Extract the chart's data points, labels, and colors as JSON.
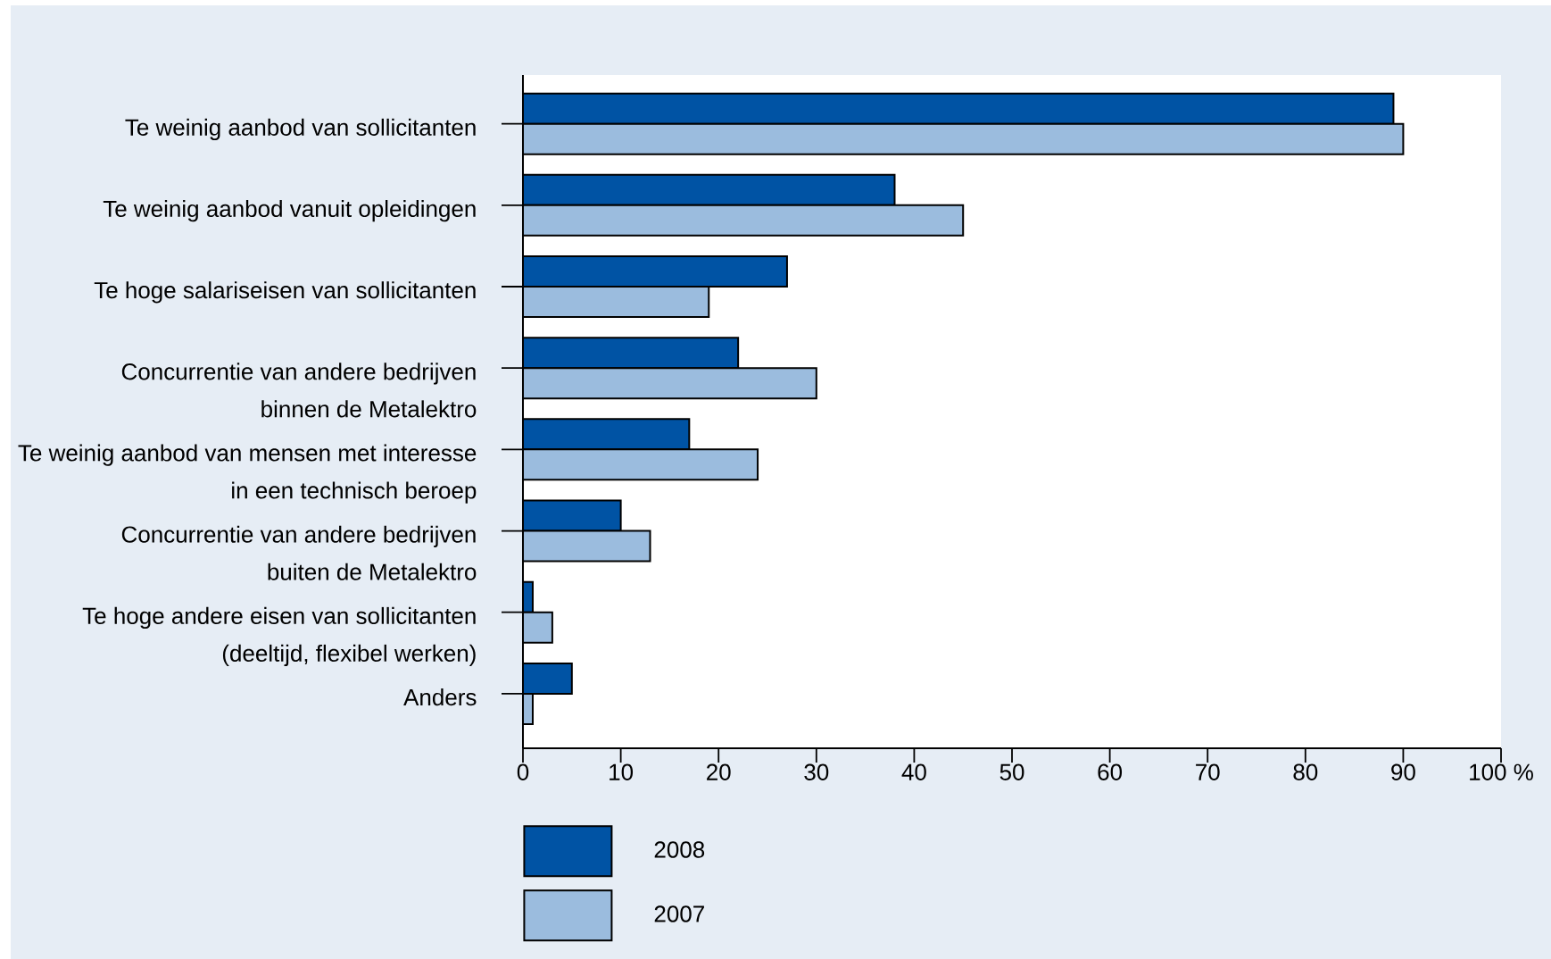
{
  "chart_data": {
    "type": "bar",
    "orientation": "horizontal",
    "categories": [
      "Te weinig aanbod van sollicitanten",
      "Te weinig aanbod vanuit opleidingen",
      "Te hoge salariseisen van sollicitanten",
      "Concurrentie van andere bedrijven binnen de Metalektro",
      "Te weinig aanbod van mensen met interesse in een technisch beroep",
      "Concurrentie van andere bedrijven buiten de Metalektro",
      "Te hoge andere eisen van sollicitanten (deeltijd, flexibel werken)",
      "Anders"
    ],
    "series": [
      {
        "name": "2008",
        "color": "#0053a4",
        "values": [
          89,
          38,
          27,
          22,
          17,
          10,
          1,
          5
        ]
      },
      {
        "name": "2007",
        "color": "#9bbcde",
        "values": [
          90,
          45,
          19,
          30,
          24,
          13,
          3,
          1
        ]
      }
    ],
    "xlim": [
      0,
      100
    ],
    "xticks": [
      0,
      10,
      20,
      30,
      40,
      50,
      60,
      70,
      80,
      90,
      {
        "value": 100,
        "label": "100 %"
      }
    ],
    "legend": "bottom left"
  }
}
